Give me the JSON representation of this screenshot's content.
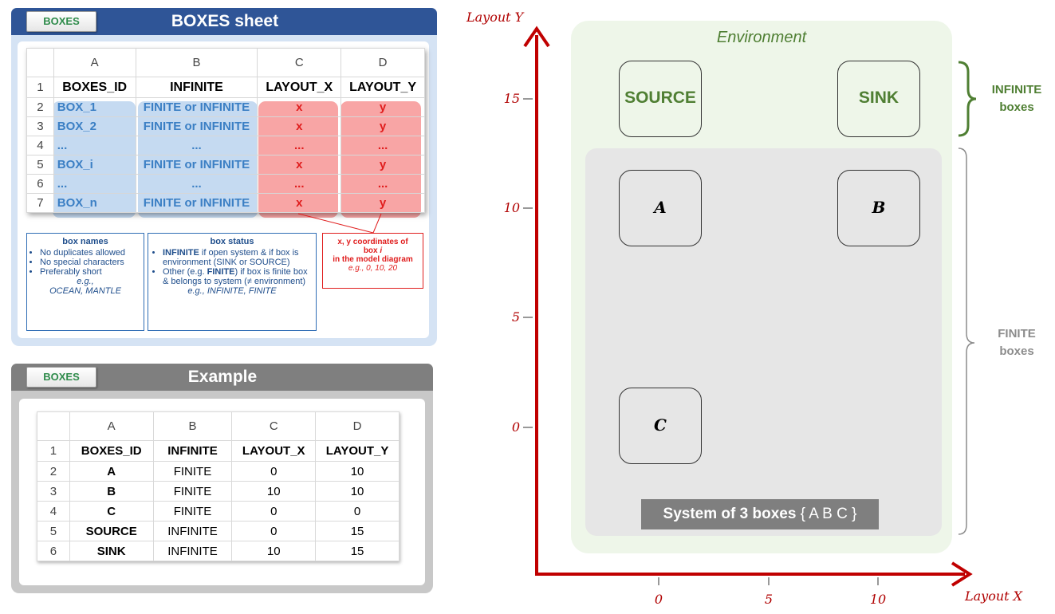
{
  "boxes_sheet": {
    "tab_label": "BOXES",
    "title": "BOXES sheet",
    "columns": [
      "A",
      "B",
      "C",
      "D"
    ],
    "row_numbers": [
      "1",
      "2",
      "3",
      "4",
      "5",
      "6",
      "7"
    ],
    "header": [
      "BOXES_ID",
      "INFINITE",
      "LAYOUT_X",
      "LAYOUT_Y"
    ],
    "rows": [
      [
        "BOX_1",
        "FINITE or INFINITE",
        "x",
        "y"
      ],
      [
        "BOX_2",
        "FINITE or INFINITE",
        "x",
        "y"
      ],
      [
        "...",
        "...",
        "...",
        "..."
      ],
      [
        "BOX_i",
        "FINITE or INFINITE",
        "x",
        "y"
      ],
      [
        "...",
        "...",
        "...",
        "..."
      ],
      [
        "BOX_n",
        "FINITE or INFINITE",
        "x",
        "y"
      ]
    ],
    "notes": {
      "names": {
        "title": "box names",
        "bullets": [
          "No duplicates allowed",
          "No special characters",
          "Preferably short"
        ],
        "example_prefix": "e.g.,",
        "example": "OCEAN, MANTLE"
      },
      "status": {
        "title": "box status",
        "bullet1_bold": "INFINITE",
        "bullet1_rest": " if open system & if box is environment (SINK or SOURCE)",
        "bullet2_pre": "Other (e.g. ",
        "bullet2_bold": "FINITE",
        "bullet2_rest": ") if box is finite box & belongs to system (≠ environment)",
        "example": "e.g., INFINITE, FINITE"
      },
      "coords": {
        "line1": "x, y coordinates of",
        "line2_pre": "box ",
        "line2_italic": "i",
        "line3": "in the model diagram",
        "example": "e.g., 0, 10, 20"
      }
    },
    "colors": {
      "header": "#2f5597",
      "body": "#dde8f5",
      "highlight_blue": "#c5daf1",
      "highlight_red": "#f8a5a5"
    }
  },
  "example_sheet": {
    "tab_label": "BOXES",
    "title": "Example",
    "columns": [
      "A",
      "B",
      "C",
      "D"
    ],
    "row_numbers": [
      "1",
      "2",
      "3",
      "4",
      "5",
      "6"
    ],
    "header": [
      "BOXES_ID",
      "INFINITE",
      "LAYOUT_X",
      "LAYOUT_Y"
    ],
    "rows": [
      [
        "A",
        "FINITE",
        "0",
        "10"
      ],
      [
        "B",
        "FINITE",
        "10",
        "10"
      ],
      [
        "C",
        "FINITE",
        "0",
        "0"
      ],
      [
        "SOURCE",
        "INFINITE",
        "0",
        "15"
      ],
      [
        "SINK",
        "INFINITE",
        "10",
        "15"
      ]
    ],
    "colors": {
      "header": "#7f7f7f",
      "body": "#c8c8c8"
    }
  },
  "diagram": {
    "y_axis_label": "Layout Y",
    "x_axis_label": "Layout X",
    "y_ticks": [
      "15",
      "10",
      "5",
      "0"
    ],
    "x_ticks": [
      "0",
      "5",
      "10"
    ],
    "environment_label": "Environment",
    "boxes": {
      "source": "SOURCE",
      "sink": "SINK",
      "a": "A",
      "b": "B",
      "c": "C"
    },
    "infinite_label_line1": "INFINITE",
    "infinite_label_line2": "boxes",
    "finite_label_line1": "FINITE",
    "finite_label_line2": "boxes",
    "system_label_bold": "System of 3 boxes",
    "system_label_rest": " { A B C }",
    "colors": {
      "axis": "#c00000",
      "environment": "#eef6e9",
      "system": "#e6e6e6",
      "infinite": "#4f7f33",
      "finite": "#8c8c8c"
    }
  }
}
